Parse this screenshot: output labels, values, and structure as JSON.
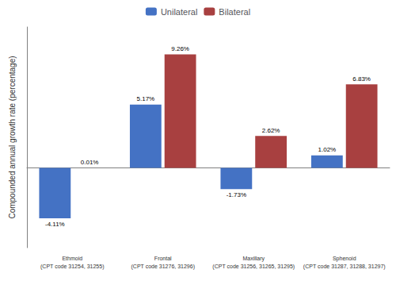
{
  "chart_data": {
    "type": "bar",
    "categories": [
      "Ethmoid\n(CPT code 31254, 31255)",
      "Frontal\n(CPT code 31276, 31296)",
      "Maxillary\n(CPT code 31256, 31265, 31295)",
      "Sphenoid\n(CPT code 31287, 31288, 31297)"
    ],
    "series": [
      {
        "name": "Unilateral",
        "color": "#4472C4",
        "values": [
          -4.11,
          5.17,
          -1.73,
          1.02
        ],
        "value_labels": [
          "-4.11%",
          "5.17%",
          "-1.73%",
          "1.02%"
        ]
      },
      {
        "name": "Bilateral",
        "color": "#A84040",
        "values": [
          0.01,
          9.26,
          2.62,
          6.83
        ],
        "value_labels": [
          "0.01%",
          "9.26%",
          "2.62%",
          "6.83%"
        ]
      }
    ],
    "ylabel": "Compounded annual growth rate (percentage)",
    "ylim": [
      -6.5,
      11.5
    ],
    "grid": false,
    "legend": "top",
    "data_labels": true,
    "tick_labels": "x"
  }
}
